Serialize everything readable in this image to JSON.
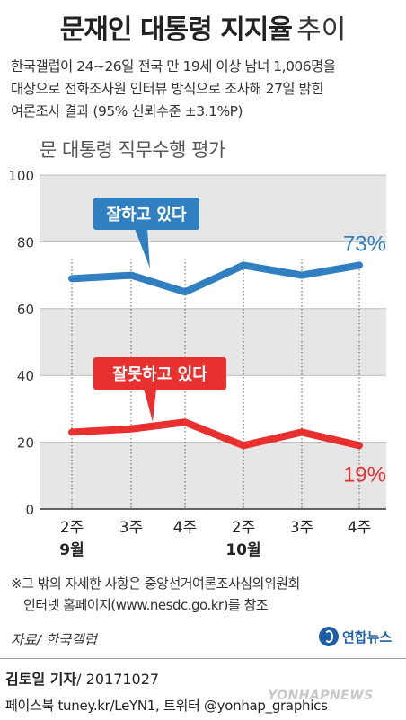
{
  "title": {
    "main": "문재인 대통령 지지율",
    "sub": "추이"
  },
  "description": [
    "한국갤럽이 24~26일 전국 만 19세 이상 남녀 1,006명을",
    "대상으로 전화조사원 인터뷰 방식으로 조사해 27일 밝힌",
    "여론조사 결과 (95% 신뢰수준 ±3.1%P)"
  ],
  "chart_data": {
    "type": "line",
    "title": "문 대통령 직무수행 평가",
    "categories": [
      "2주",
      "3주",
      "4주",
      "2주",
      "3주",
      "4주"
    ],
    "month_labels": [
      {
        "label": "9월",
        "index": 0
      },
      {
        "label": "10월",
        "index": 3
      }
    ],
    "ylim": [
      0,
      100
    ],
    "yticks": [
      0,
      20,
      40,
      60,
      80,
      100
    ],
    "grid": true,
    "series": [
      {
        "name": "잘하고 있다",
        "color": "#2f7fc1",
        "values": [
          69,
          70,
          65,
          73,
          70,
          73
        ],
        "end_label": "73%"
      },
      {
        "name": "잘못하고 있다",
        "color": "#e8312f",
        "values": [
          23,
          24,
          26,
          19,
          23,
          19
        ],
        "end_label": "19%"
      }
    ]
  },
  "footnote": [
    "※그 밖의 자세한 사항은 중앙선거여론조사심의위원회",
    "인터넷 홈페이지(www.nesdc.go.kr)를 참조"
  ],
  "source": "자료/ 한국갤럽",
  "logo_text": "연합뉴스",
  "credit": {
    "author": "김토일 기자",
    "date": "/ 20171027"
  },
  "social": "페이스북 tuney.kr/LeYN1, 트위터 @yonhap_graphics",
  "watermark": "YONHAPNEWS"
}
